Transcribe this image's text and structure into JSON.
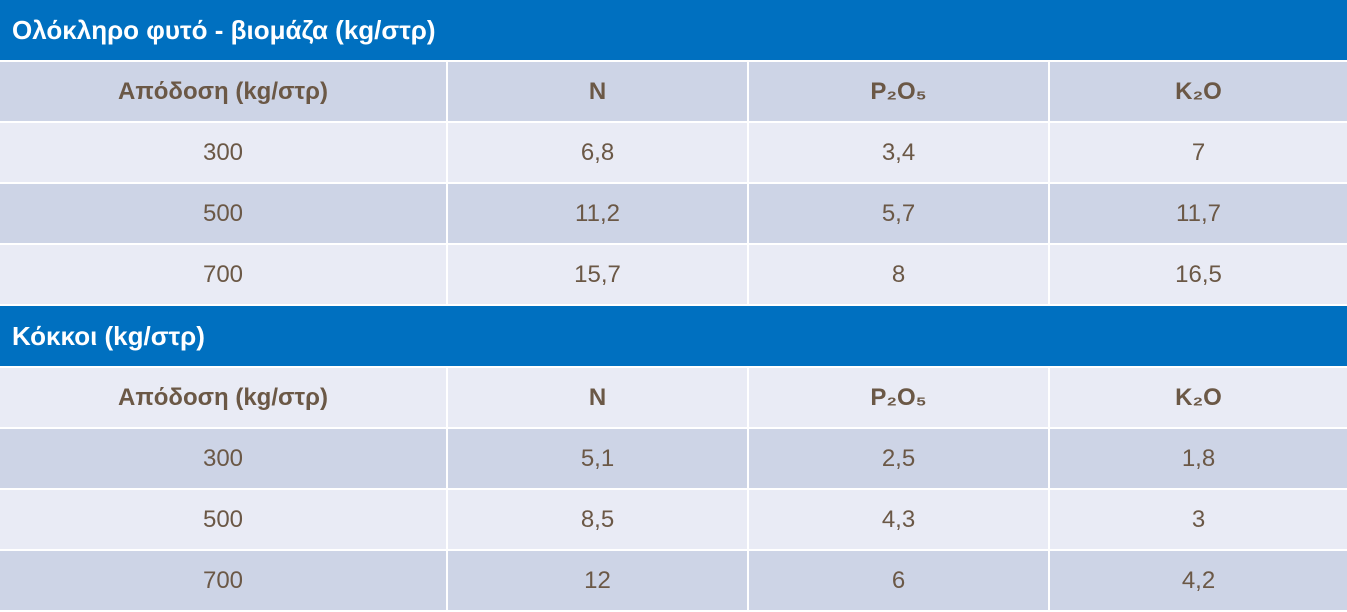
{
  "sections": [
    {
      "title": "Ολόκληρο φυτό - βιομάζα (kg/στρ)",
      "header": [
        "Απόδοση (kg/στρ)",
        "N",
        "P₂O₅",
        "K₂O"
      ],
      "rows": [
        [
          "300",
          "6,8",
          "3,4",
          "7"
        ],
        [
          "500",
          "11,2",
          "5,7",
          "11,7"
        ],
        [
          "700",
          "15,7",
          "8",
          "16,5"
        ]
      ]
    },
    {
      "title": "Κόκκοι (kg/στρ)",
      "header": [
        "Απόδοση (kg/στρ)",
        "N",
        "P₂O₅",
        "K₂O"
      ],
      "rows": [
        [
          "300",
          "5,1",
          "2,5",
          "1,8"
        ],
        [
          "500",
          "8,5",
          "4,3",
          "3"
        ],
        [
          "700",
          "12",
          "6",
          "4,2"
        ]
      ]
    }
  ]
}
